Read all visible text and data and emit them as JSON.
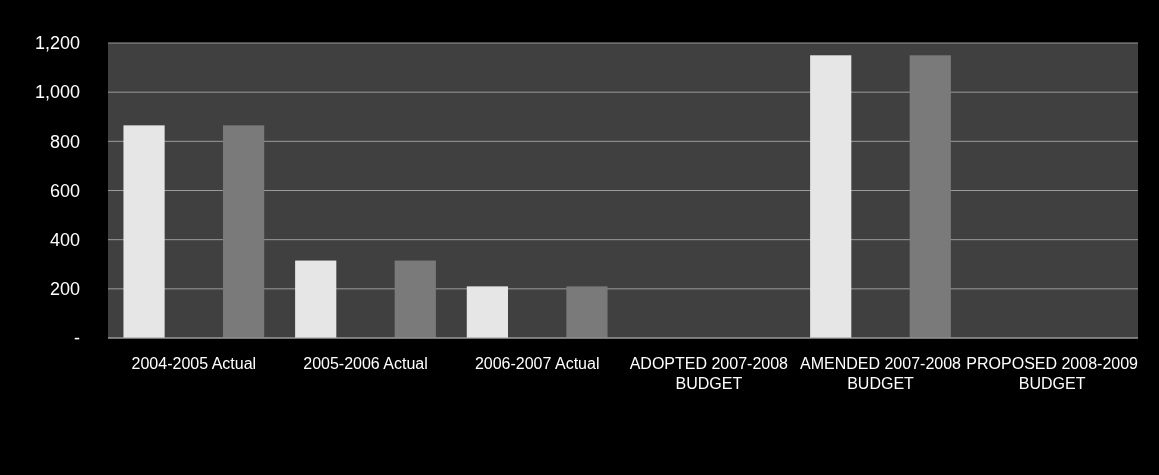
{
  "chart_data": {
    "type": "bar",
    "categories": [
      "2004-2005 Actual",
      "2005-2006 Actual",
      "2006-2007 Actual",
      "ADOPTED 2007-2008 BUDGET",
      "AMENDED 2007-2008 BUDGET",
      "PROPOSED 2008-2009 BUDGET"
    ],
    "series": [
      {
        "color": "#e6e6e6",
        "values": [
          865,
          315,
          210,
          null,
          1150,
          null
        ]
      },
      {
        "color": "#7a7a7a",
        "values": [
          865,
          315,
          210,
          null,
          1150,
          null
        ]
      }
    ],
    "ylim": [
      0,
      1200
    ],
    "yticks": [
      {
        "value": 0,
        "label": "-"
      },
      {
        "value": 200,
        "label": "200"
      },
      {
        "value": 400,
        "label": "400"
      },
      {
        "value": 600,
        "label": "600"
      },
      {
        "value": 800,
        "label": "800"
      },
      {
        "value": 1000,
        "label": "1,000"
      },
      {
        "value": 1200,
        "label": "1,200"
      }
    ],
    "grid": "y",
    "legend": false
  }
}
